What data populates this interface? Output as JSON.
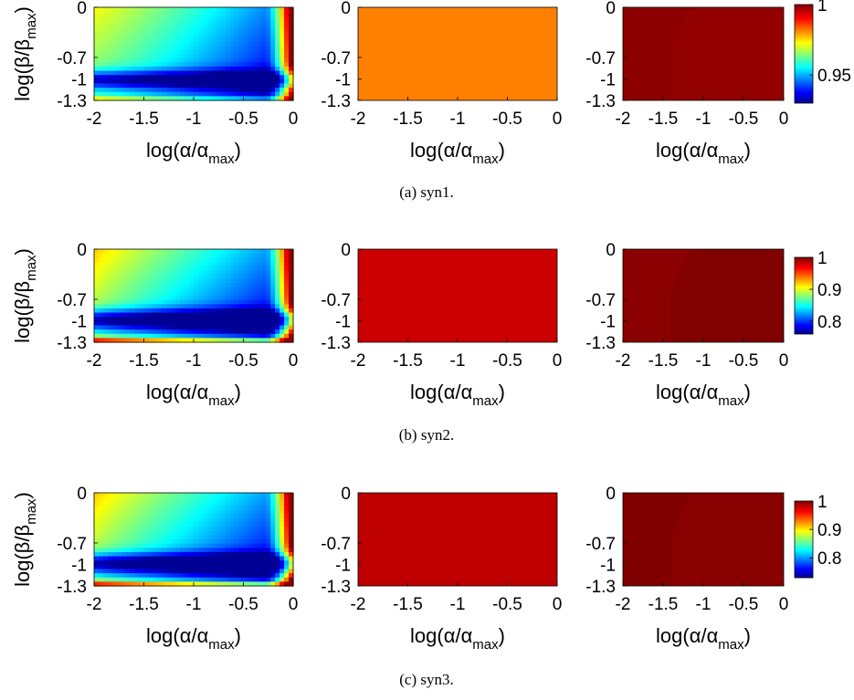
{
  "rows": [
    {
      "caption": "(a) syn1.",
      "colorbar_ticks": [
        "1",
        "0.95"
      ],
      "colorbar_values": [
        1,
        0.95
      ],
      "colorbar_range": [
        0.93,
        1.0
      ]
    },
    {
      "caption": "(b) syn2.",
      "colorbar_ticks": [
        "1",
        "0.9",
        "0.8"
      ],
      "colorbar_values": [
        1,
        0.9,
        0.8
      ],
      "colorbar_range": [
        0.76,
        1.0
      ]
    },
    {
      "caption": "(c) syn3.",
      "colorbar_ticks": [
        "1",
        "0.9",
        "0.8"
      ],
      "colorbar_values": [
        1,
        0.9,
        0.8
      ],
      "colorbar_range": [
        0.73,
        1.0
      ]
    }
  ],
  "axes": {
    "x_ticks": [
      "-2",
      "-1.5",
      "-1",
      "-0.5",
      "0"
    ],
    "x_values": [
      -2,
      -1.5,
      -1,
      -0.5,
      0
    ],
    "y_ticks": [
      "0",
      "-0.7",
      "-1",
      "-1.3"
    ],
    "y_values": [
      0,
      -0.7,
      -1,
      -1.3
    ],
    "xlabel": "log(α/α",
    "xlabel_sub": "max",
    "xlabel_close": ")",
    "ylabel": "log(β/β",
    "ylabel_sub": "max",
    "ylabel_close": ")"
  },
  "chart_data": [
    {
      "type": "heatmap",
      "panel": "syn1-left",
      "x_range": [
        -2,
        0
      ],
      "y_range": [
        -1.3,
        0
      ],
      "colormap": "jet",
      "description_values": {
        "top-left": 0.965,
        "middle-right": 0.935,
        "bottom-band": 0.93,
        "right-edge": 1.0
      }
    },
    {
      "type": "heatmap",
      "panel": "syn1-middle",
      "x_range": [
        -2,
        0
      ],
      "y_range": [
        -1.3,
        0
      ],
      "uniform_color": "#ff8000"
    },
    {
      "type": "heatmap",
      "panel": "syn1-right",
      "x_range": [
        -2,
        0
      ],
      "y_range": [
        -1.3,
        0
      ],
      "uniform_color": "#8a0000"
    },
    {
      "type": "heatmap",
      "panel": "syn2-left",
      "x_range": [
        -2,
        0
      ],
      "y_range": [
        -1.3,
        0
      ],
      "colormap": "jet"
    },
    {
      "type": "heatmap",
      "panel": "syn2-middle",
      "x_range": [
        -2,
        0
      ],
      "y_range": [
        -1.3,
        0
      ],
      "uniform_color": "#cc0000"
    },
    {
      "type": "heatmap",
      "panel": "syn2-right",
      "x_range": [
        -2,
        0
      ],
      "y_range": [
        -1.3,
        0
      ],
      "uniform_color": "#870000"
    },
    {
      "type": "heatmap",
      "panel": "syn3-left",
      "x_range": [
        -2,
        0
      ],
      "y_range": [
        -1.3,
        0
      ],
      "colormap": "jet"
    },
    {
      "type": "heatmap",
      "panel": "syn3-middle",
      "x_range": [
        -2,
        0
      ],
      "y_range": [
        -1.3,
        0
      ],
      "uniform_color": "#bf0000"
    },
    {
      "type": "heatmap",
      "panel": "syn3-right",
      "x_range": [
        -2,
        0
      ],
      "y_range": [
        -1.3,
        0
      ],
      "uniform_color": "#800000"
    }
  ],
  "colors": {
    "syn1_middle": "#ff8000",
    "syn1_right": "#8c0000",
    "syn1_right_patch": "#990000",
    "syn2_middle": "#cc0000",
    "syn2_right": "#8b0000",
    "syn2_right_patch": "#7a0000",
    "syn3_middle": "#bf0000",
    "syn3_right": "#800000",
    "syn3_right_patch": "#8f0000"
  }
}
